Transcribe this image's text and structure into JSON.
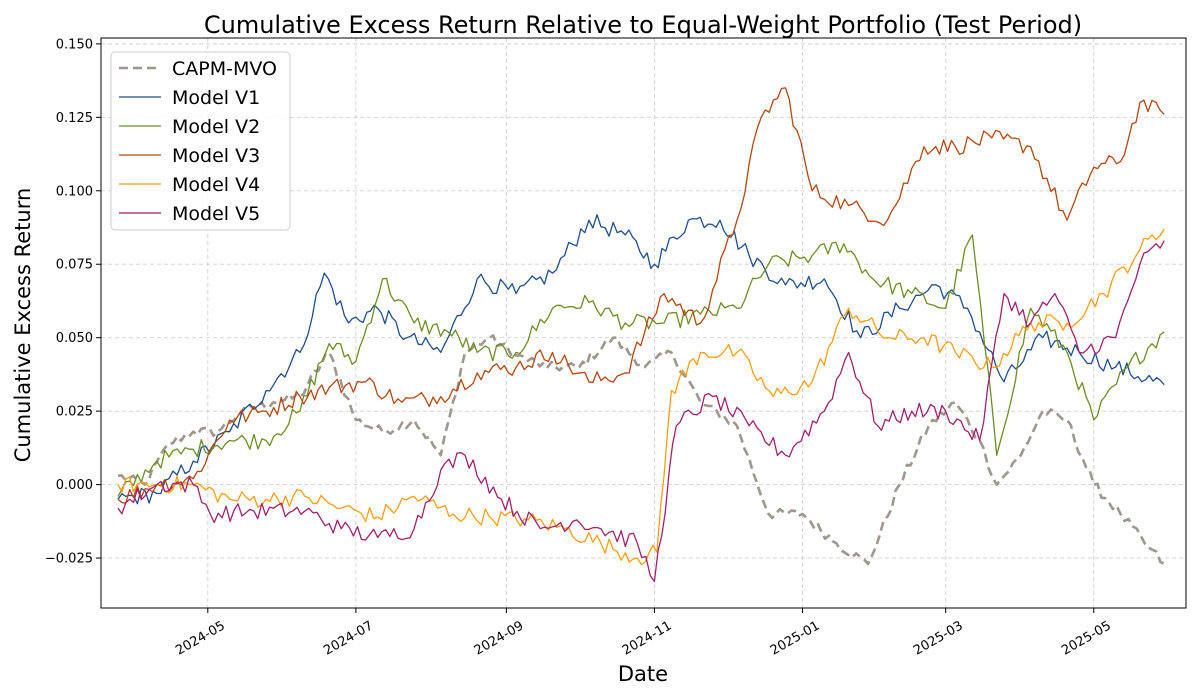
{
  "chart_data": {
    "type": "line",
    "title": "Cumulative Excess Return Relative to Equal-Weight Portfolio (Test Period)",
    "xlabel": "Date",
    "ylabel": "Cumulative Excess Return",
    "xlim": [
      "2024-03-18",
      "2025-06-08"
    ],
    "ylim": [
      -0.042,
      0.152
    ],
    "x_ticks": [
      "2024-05",
      "2024-07",
      "2024-09",
      "2024-11",
      "2025-01",
      "2025-03",
      "2025-05"
    ],
    "y_ticks": [
      -0.025,
      0.0,
      0.025,
      0.05,
      0.075,
      0.1,
      0.125,
      0.15
    ],
    "y_tick_labels": [
      "−0.025",
      "0.000",
      "0.025",
      "0.050",
      "0.075",
      "0.100",
      "0.125",
      "0.150"
    ],
    "grid": true,
    "legend_position": "top-left",
    "series": [
      {
        "name": "CAPM-MVO",
        "color": "#a0968c",
        "dashed": true,
        "points": [
          [
            "2024-03-25",
            0.003
          ],
          [
            "2024-04-05",
            0.0
          ],
          [
            "2024-04-15",
            0.014
          ],
          [
            "2024-04-25",
            0.018
          ],
          [
            "2024-05-05",
            0.018
          ],
          [
            "2024-05-15",
            0.025
          ],
          [
            "2024-05-28",
            0.028
          ],
          [
            "2024-06-08",
            0.03
          ],
          [
            "2024-06-20",
            0.045
          ],
          [
            "2024-07-01",
            0.022
          ],
          [
            "2024-07-12",
            0.018
          ],
          [
            "2024-07-25",
            0.022
          ],
          [
            "2024-08-05",
            0.01
          ],
          [
            "2024-08-15",
            0.045
          ],
          [
            "2024-08-25",
            0.05
          ],
          [
            "2024-09-05",
            0.044
          ],
          [
            "2024-09-18",
            0.04
          ],
          [
            "2024-10-01",
            0.04
          ],
          [
            "2024-10-15",
            0.05
          ],
          [
            "2024-10-28",
            0.04
          ],
          [
            "2024-11-08",
            0.045
          ],
          [
            "2024-11-20",
            0.028
          ],
          [
            "2024-12-05",
            0.02
          ],
          [
            "2024-12-18",
            -0.01
          ],
          [
            "2025-01-01",
            -0.01
          ],
          [
            "2025-01-15",
            -0.02
          ],
          [
            "2025-01-28",
            -0.027
          ],
          [
            "2025-02-10",
            0.0
          ],
          [
            "2025-02-22",
            0.02
          ],
          [
            "2025-03-05",
            0.028
          ],
          [
            "2025-03-15",
            0.015
          ],
          [
            "2025-03-22",
            0.0
          ],
          [
            "2025-04-01",
            0.01
          ],
          [
            "2025-04-10",
            0.025
          ],
          [
            "2025-04-20",
            0.022
          ],
          [
            "2025-05-01",
            0.0
          ],
          [
            "2025-05-12",
            -0.01
          ],
          [
            "2025-05-22",
            -0.02
          ],
          [
            "2025-05-30",
            -0.027
          ]
        ]
      },
      {
        "name": "Model V1",
        "color": "#1f4e8c",
        "dashed": false,
        "points": [
          [
            "2024-03-25",
            -0.005
          ],
          [
            "2024-04-10",
            -0.003
          ],
          [
            "2024-04-25",
            0.008
          ],
          [
            "2024-05-10",
            0.018
          ],
          [
            "2024-05-25",
            0.032
          ],
          [
            "2024-06-08",
            0.045
          ],
          [
            "2024-06-18",
            0.072
          ],
          [
            "2024-06-28",
            0.055
          ],
          [
            "2024-07-10",
            0.06
          ],
          [
            "2024-07-22",
            0.05
          ],
          [
            "2024-08-05",
            0.045
          ],
          [
            "2024-08-20",
            0.07
          ],
          [
            "2024-09-05",
            0.065
          ],
          [
            "2024-09-20",
            0.072
          ],
          [
            "2024-10-05",
            0.09
          ],
          [
            "2024-10-20",
            0.085
          ],
          [
            "2024-11-01",
            0.075
          ],
          [
            "2024-11-15",
            0.09
          ],
          [
            "2024-11-28",
            0.09
          ],
          [
            "2024-12-10",
            0.078
          ],
          [
            "2024-12-25",
            0.068
          ],
          [
            "2025-01-10",
            0.07
          ],
          [
            "2025-01-25",
            0.05
          ],
          [
            "2025-02-10",
            0.06
          ],
          [
            "2025-02-25",
            0.068
          ],
          [
            "2025-03-10",
            0.06
          ],
          [
            "2025-03-25",
            0.035
          ],
          [
            "2025-04-10",
            0.05
          ],
          [
            "2025-04-25",
            0.045
          ],
          [
            "2025-05-10",
            0.04
          ],
          [
            "2025-05-30",
            0.034
          ]
        ]
      },
      {
        "name": "Model V2",
        "color": "#6b8e23",
        "dashed": false,
        "points": [
          [
            "2024-03-25",
            -0.004
          ],
          [
            "2024-04-10",
            0.008
          ],
          [
            "2024-04-25",
            0.012
          ],
          [
            "2024-05-10",
            0.015
          ],
          [
            "2024-05-25",
            0.015
          ],
          [
            "2024-06-08",
            0.025
          ],
          [
            "2024-06-20",
            0.048
          ],
          [
            "2024-07-01",
            0.042
          ],
          [
            "2024-07-12",
            0.07
          ],
          [
            "2024-07-25",
            0.055
          ],
          [
            "2024-08-08",
            0.052
          ],
          [
            "2024-08-20",
            0.045
          ],
          [
            "2024-09-05",
            0.045
          ],
          [
            "2024-09-20",
            0.06
          ],
          [
            "2024-10-05",
            0.062
          ],
          [
            "2024-10-20",
            0.055
          ],
          [
            "2024-11-05",
            0.055
          ],
          [
            "2024-11-20",
            0.058
          ],
          [
            "2024-12-05",
            0.06
          ],
          [
            "2024-12-18",
            0.075
          ],
          [
            "2025-01-05",
            0.078
          ],
          [
            "2025-01-18",
            0.082
          ],
          [
            "2025-01-30",
            0.07
          ],
          [
            "2025-02-15",
            0.065
          ],
          [
            "2025-03-01",
            0.06
          ],
          [
            "2025-03-12",
            0.085
          ],
          [
            "2025-03-22",
            0.01
          ],
          [
            "2025-04-05",
            0.06
          ],
          [
            "2025-04-20",
            0.045
          ],
          [
            "2025-05-01",
            0.022
          ],
          [
            "2025-05-15",
            0.04
          ],
          [
            "2025-05-30",
            0.052
          ]
        ]
      },
      {
        "name": "Model V3",
        "color": "#b5460f",
        "dashed": false,
        "points": [
          [
            "2024-03-25",
            -0.005
          ],
          [
            "2024-04-10",
            0.0
          ],
          [
            "2024-04-25",
            0.002
          ],
          [
            "2024-05-10",
            0.022
          ],
          [
            "2024-05-25",
            0.025
          ],
          [
            "2024-06-08",
            0.03
          ],
          [
            "2024-06-20",
            0.033
          ],
          [
            "2024-07-05",
            0.035
          ],
          [
            "2024-07-20",
            0.028
          ],
          [
            "2024-08-05",
            0.03
          ],
          [
            "2024-08-20",
            0.038
          ],
          [
            "2024-09-05",
            0.04
          ],
          [
            "2024-09-20",
            0.045
          ],
          [
            "2024-10-05",
            0.035
          ],
          [
            "2024-10-20",
            0.038
          ],
          [
            "2024-11-05",
            0.065
          ],
          [
            "2024-11-20",
            0.055
          ],
          [
            "2024-12-05",
            0.09
          ],
          [
            "2024-12-15",
            0.125
          ],
          [
            "2024-12-25",
            0.135
          ],
          [
            "2025-01-05",
            0.1
          ],
          [
            "2025-01-20",
            0.095
          ],
          [
            "2025-02-05",
            0.09
          ],
          [
            "2025-02-20",
            0.115
          ],
          [
            "2025-03-05",
            0.115
          ],
          [
            "2025-03-20",
            0.118
          ],
          [
            "2025-04-05",
            0.115
          ],
          [
            "2025-04-20",
            0.09
          ],
          [
            "2025-05-01",
            0.108
          ],
          [
            "2025-05-12",
            0.11
          ],
          [
            "2025-05-20",
            0.13
          ],
          [
            "2025-05-30",
            0.126
          ]
        ]
      },
      {
        "name": "Model V4",
        "color": "#ff9e0f",
        "dashed": false,
        "points": [
          [
            "2024-03-25",
            0.0
          ],
          [
            "2024-04-10",
            0.0
          ],
          [
            "2024-04-25",
            0.0
          ],
          [
            "2024-05-10",
            -0.005
          ],
          [
            "2024-05-25",
            -0.005
          ],
          [
            "2024-06-10",
            -0.004
          ],
          [
            "2024-06-25",
            -0.008
          ],
          [
            "2024-07-10",
            -0.011
          ],
          [
            "2024-07-25",
            -0.004
          ],
          [
            "2024-08-10",
            -0.01
          ],
          [
            "2024-08-25",
            -0.011
          ],
          [
            "2024-09-10",
            -0.012
          ],
          [
            "2024-09-25",
            -0.015
          ],
          [
            "2024-10-10",
            -0.02
          ],
          [
            "2024-10-25",
            -0.025
          ],
          [
            "2024-11-02",
            -0.023
          ],
          [
            "2024-11-08",
            0.032
          ],
          [
            "2024-11-20",
            0.045
          ],
          [
            "2024-12-05",
            0.045
          ],
          [
            "2024-12-20",
            0.03
          ],
          [
            "2025-01-05",
            0.035
          ],
          [
            "2025-01-20",
            0.06
          ],
          [
            "2025-02-05",
            0.05
          ],
          [
            "2025-02-20",
            0.05
          ],
          [
            "2025-03-05",
            0.045
          ],
          [
            "2025-03-20",
            0.04
          ],
          [
            "2025-04-05",
            0.055
          ],
          [
            "2025-04-20",
            0.055
          ],
          [
            "2025-05-05",
            0.065
          ],
          [
            "2025-05-20",
            0.08
          ],
          [
            "2025-05-30",
            0.087
          ]
        ]
      },
      {
        "name": "Model V5",
        "color": "#a31f6f",
        "dashed": false,
        "points": [
          [
            "2024-03-25",
            -0.008
          ],
          [
            "2024-04-10",
            0.0
          ],
          [
            "2024-04-25",
            0.0
          ],
          [
            "2024-05-02",
            -0.01
          ],
          [
            "2024-05-20",
            -0.009
          ],
          [
            "2024-06-10",
            -0.009
          ],
          [
            "2024-06-25",
            -0.015
          ],
          [
            "2024-07-10",
            -0.018
          ],
          [
            "2024-07-25",
            -0.015
          ],
          [
            "2024-08-05",
            0.005
          ],
          [
            "2024-08-15",
            0.01
          ],
          [
            "2024-08-30",
            -0.005
          ],
          [
            "2024-09-15",
            -0.015
          ],
          [
            "2024-09-30",
            -0.012
          ],
          [
            "2024-10-10",
            -0.015
          ],
          [
            "2024-10-25",
            -0.02
          ],
          [
            "2024-11-01",
            -0.033
          ],
          [
            "2024-11-10",
            0.02
          ],
          [
            "2024-11-25",
            0.03
          ],
          [
            "2024-12-10",
            0.02
          ],
          [
            "2024-12-25",
            0.01
          ],
          [
            "2025-01-10",
            0.025
          ],
          [
            "2025-01-20",
            0.045
          ],
          [
            "2025-02-01",
            0.02
          ],
          [
            "2025-02-15",
            0.025
          ],
          [
            "2025-03-01",
            0.025
          ],
          [
            "2025-03-15",
            0.015
          ],
          [
            "2025-03-25",
            0.065
          ],
          [
            "2025-04-05",
            0.055
          ],
          [
            "2025-04-15",
            0.065
          ],
          [
            "2025-04-25",
            0.045
          ],
          [
            "2025-05-10",
            0.05
          ],
          [
            "2025-05-20",
            0.075
          ],
          [
            "2025-05-30",
            0.083
          ]
        ]
      }
    ]
  }
}
